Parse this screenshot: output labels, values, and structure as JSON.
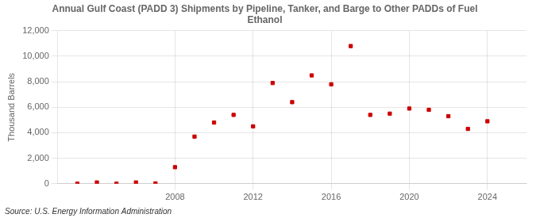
{
  "chart_data": {
    "type": "scatter",
    "title": "Annual Gulf Coast (PADD 3) Shipments by Pipeline, Tanker, and Barge to Other PADDs of Fuel\nEthanol",
    "ylabel": "Thousand Barrels",
    "annotation": "Source: U.S. Energy Information Administration",
    "x": [
      2003,
      2004,
      2005,
      2006,
      2007,
      2008,
      2009,
      2010,
      2011,
      2012,
      2013,
      2014,
      2015,
      2016,
      2017,
      2018,
      2019,
      2020,
      2021,
      2022,
      2023,
      2024
    ],
    "values": [
      5,
      100,
      5,
      100,
      30,
      1300,
      3700,
      4800,
      5400,
      4500,
      7900,
      6400,
      8500,
      7800,
      10800,
      5400,
      5500,
      5900,
      5800,
      5300,
      4300,
      4900
    ],
    "color": "#cc0000",
    "marker": "square",
    "xlim": [
      2002.0,
      2026.0
    ],
    "xticks": [
      2008,
      2012,
      2016,
      2020,
      2024
    ],
    "ylim": [
      0,
      12000
    ],
    "yticks": [
      0,
      {
        "value": 2000,
        "label": "2,000"
      },
      {
        "value": 4000,
        "label": "4,000"
      },
      {
        "value": 6000,
        "label": "6,000"
      },
      {
        "value": 8000,
        "label": "8,000"
      },
      {
        "value": 10000,
        "label": "10,000"
      },
      {
        "value": 12000,
        "label": "12,000"
      }
    ],
    "grid": true
  }
}
